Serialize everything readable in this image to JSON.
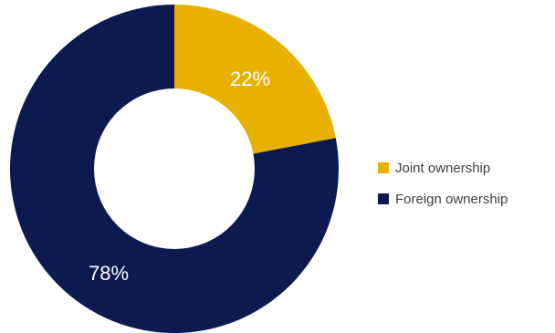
{
  "chart_data": {
    "type": "pie",
    "variant": "donut",
    "slices": [
      {
        "label": "Joint ownership",
        "value": 22,
        "display": "22%",
        "color": "#E8B000"
      },
      {
        "label": "Foreign ownership",
        "value": 78,
        "display": "78%",
        "color": "#0D1A4F"
      }
    ],
    "title": "",
    "legend_position": "right"
  }
}
